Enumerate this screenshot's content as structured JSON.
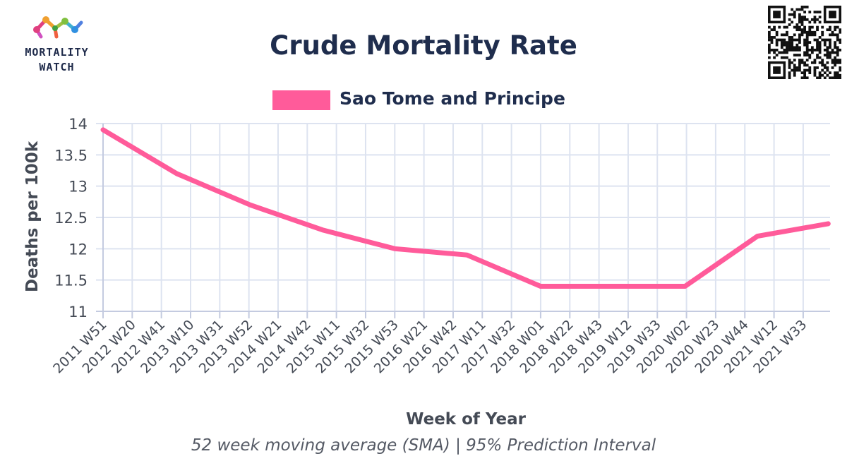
{
  "brand": {
    "line1": "MORTALITY",
    "line2": "WATCH",
    "logo_icon": "molecule-logo-icon",
    "qr_icon": "qr-code-icon"
  },
  "chart_data": {
    "type": "line",
    "title": "Crude Mortality Rate",
    "xlabel": "Week of Year",
    "ylabel": "Deaths per 100k",
    "subtitle": "52 week moving average (SMA) | 95% Prediction Interval",
    "ylim": [
      11,
      14
    ],
    "y_ticks": [
      "11",
      "11.5",
      "12",
      "12.5",
      "13",
      "13.5",
      "14"
    ],
    "categories": [
      "2011 W51",
      "2012 W20",
      "2012 W41",
      "2013 W10",
      "2013 W31",
      "2013 W52",
      "2014 W21",
      "2014 W42",
      "2015 W11",
      "2015 W32",
      "2015 W53",
      "2016 W21",
      "2016 W42",
      "2017 W11",
      "2017 W32",
      "2018 W01",
      "2018 W22",
      "2018 W43",
      "2019 W12",
      "2019 W33",
      "2020 W02",
      "2020 W23",
      "2020 W44",
      "2021 W12",
      "2021 W33"
    ],
    "legend_position": "top-center",
    "grid": true,
    "series": [
      {
        "name": "Sao Tome and Principe",
        "color": "#ff5b9a",
        "points": [
          {
            "x": "2011 W51",
            "y": 13.9
          },
          {
            "x": "2012 W52",
            "y": 13.2
          },
          {
            "x": "2014 W01",
            "y": 12.7
          },
          {
            "x": "2015 W01",
            "y": 12.3
          },
          {
            "x": "2015 W53",
            "y": 12.0
          },
          {
            "x": "2016 W52",
            "y": 11.9
          },
          {
            "x": "2018 W01",
            "y": 11.4
          },
          {
            "x": "2020 W01",
            "y": 11.4
          },
          {
            "x": "2021 W01",
            "y": 12.2
          },
          {
            "x": "2021 W52",
            "y": 12.4
          }
        ]
      }
    ]
  }
}
